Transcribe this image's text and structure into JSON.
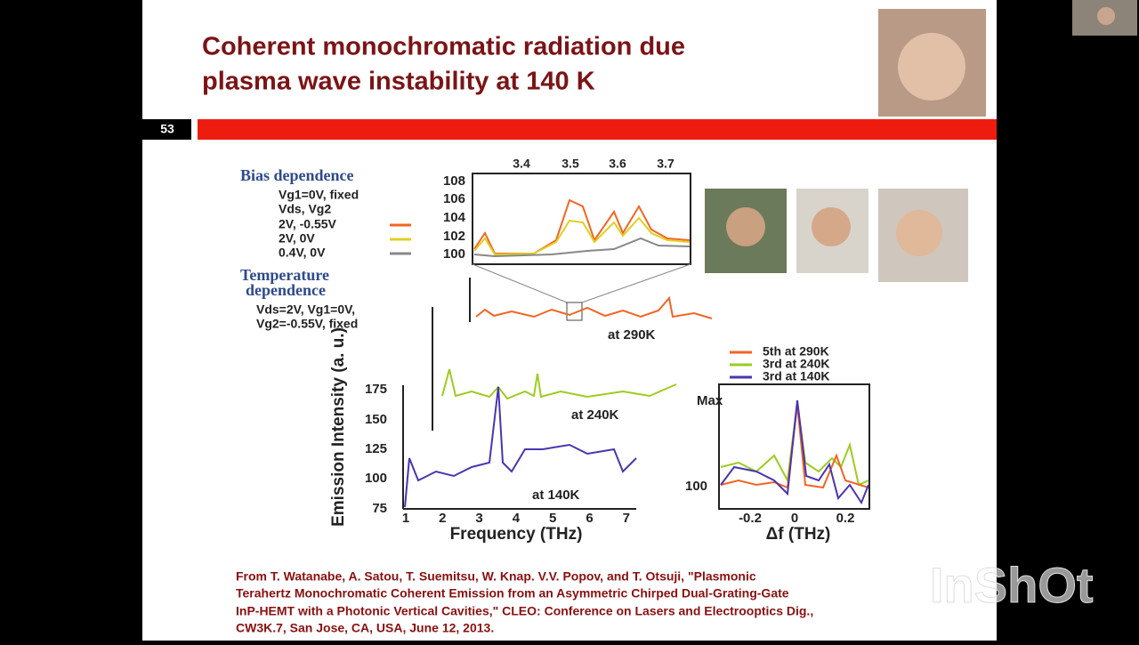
{
  "slide": {
    "title_lines": [
      "Coherent monochromatic radiation due",
      "plasma wave instability at 140 K"
    ],
    "number": "53",
    "figure": {
      "bias_heading": "Bias dependence",
      "bias_lines": [
        "Vg1=0V, fixed",
        "Vds, Vg2",
        "2V, -0.55V",
        "2V, 0V",
        "0.4V, 0V"
      ],
      "temp_heading": [
        "Temperature",
        "dependence"
      ],
      "temp_lines": [
        "Vds=2V, Vg1=0V,",
        "Vg2=-0.55V, fixed"
      ],
      "inset_top_ticks": [
        "3.4",
        "3.5",
        "3.6",
        "3.7"
      ],
      "inset_left_ticks": [
        "108",
        "106",
        "104",
        "102",
        "100"
      ],
      "main_y_ticks": [
        "175",
        "150",
        "125",
        "100",
        "75"
      ],
      "main_x_ticks": [
        "1",
        "2",
        "3",
        "4",
        "5",
        "6",
        "7"
      ],
      "main_x_label": "Frequency (THz)",
      "main_y_label": "Emission Intensity (a. u.)",
      "panel_labels": [
        "at 290K",
        "at 240K",
        "at 140K"
      ],
      "right_legend": [
        "5th at 290K",
        "3rd at 240K",
        "3rd at 140K"
      ],
      "right_y_ticks": [
        "Max",
        "100"
      ],
      "right_x_ticks": [
        "-0.2",
        "0",
        "0.2"
      ],
      "right_x_label": "Δf (THz)"
    },
    "citation_lines": [
      "From T. Watanabe, A. Satou, T. Suemitsu, W. Knap. V.V. Popov, and T. Otsuji, \"Plasmonic",
      "Terahertz Monochromatic Coherent Emission from an Asymmetric Chirped Dual-Grating-Gate",
      "InP-HEMT with a Photonic Vertical Cavities,\" CLEO: Conference on Lasers and Electrooptics Dig.,",
      "CW3K.7, San Jose, CA, USA, June 12, 2013."
    ]
  },
  "watermark": "InShOt"
}
